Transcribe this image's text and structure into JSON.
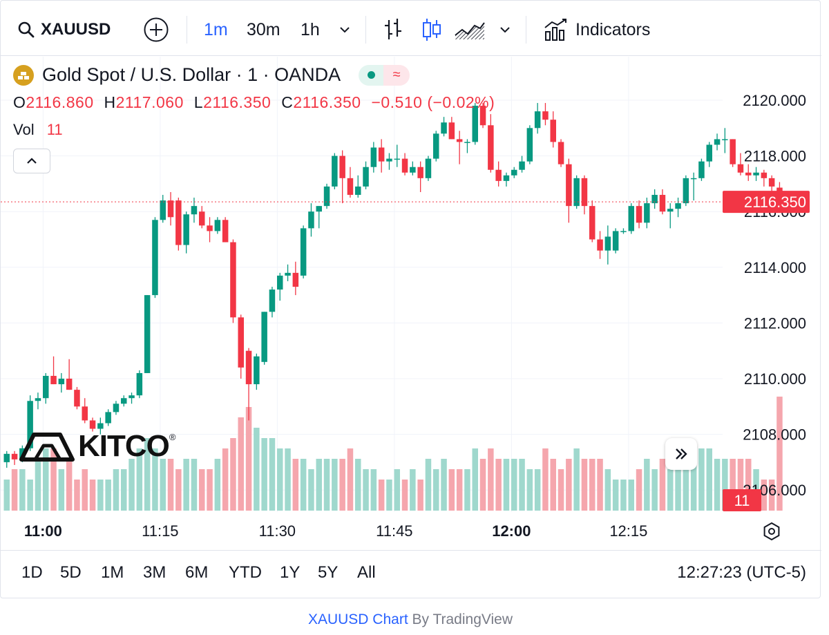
{
  "toolbar": {
    "symbol": "XAUUSD",
    "intervals": [
      "1m",
      "30m",
      "1h"
    ],
    "active_interval": "1m",
    "indicators_label": "Indicators"
  },
  "legend": {
    "title": "Gold Spot / U.S. Dollar · 1 · OANDA",
    "ohlc": {
      "o_label": "O",
      "o": "2116.860",
      "h_label": "H",
      "h": "2117.060",
      "l_label": "L",
      "l": "2116.350",
      "c_label": "C",
      "c": "2116.350",
      "change": "−0.510 (−0.02%)"
    },
    "vol_label": "Vol",
    "vol_value": "11"
  },
  "chart_data": {
    "type": "candlestick",
    "x_ticks": [
      {
        "label": "11:00",
        "index": 2,
        "bold": true
      },
      {
        "label": "11:15",
        "index": 17,
        "bold": false
      },
      {
        "label": "11:30",
        "index": 32,
        "bold": false
      },
      {
        "label": "11:45",
        "index": 47,
        "bold": false
      },
      {
        "label": "12:00",
        "index": 62,
        "bold": true
      },
      {
        "label": "12:15",
        "index": 77,
        "bold": false
      }
    ],
    "y_ticks": [
      "2120.000",
      "2118.000",
      "2116.000",
      "2114.000",
      "2112.000",
      "2110.000",
      "2108.000",
      "2106.000"
    ],
    "ylim": [
      2105.3,
      2120.9
    ],
    "last_price": "2116.350",
    "last_volume": "11",
    "up_color": "#089981",
    "down_color": "#f23645",
    "candles": [
      [
        2107.0,
        2107.4,
        2106.8,
        2107.3,
        3
      ],
      [
        2107.3,
        2107.4,
        2106.9,
        2107.1,
        4
      ],
      [
        2107.1,
        2107.6,
        2107.0,
        2107.5,
        4
      ],
      [
        2107.5,
        2109.4,
        2107.4,
        2109.2,
        3
      ],
      [
        2109.2,
        2109.5,
        2108.9,
        2109.3,
        5
      ],
      [
        2109.3,
        2110.2,
        2109.1,
        2110.1,
        6
      ],
      [
        2110.1,
        2110.8,
        2109.8,
        2109.8,
        6
      ],
      [
        2109.8,
        2110.2,
        2109.5,
        2110.0,
        4
      ],
      [
        2110.0,
        2110.7,
        2109.6,
        2109.6,
        5
      ],
      [
        2109.6,
        2109.7,
        2108.9,
        2109.0,
        3
      ],
      [
        2109.0,
        2109.3,
        2108.4,
        2108.5,
        4
      ],
      [
        2108.5,
        2108.6,
        2108.1,
        2108.2,
        3
      ],
      [
        2108.2,
        2108.6,
        2108.0,
        2108.4,
        3
      ],
      [
        2108.4,
        2108.9,
        2108.3,
        2108.8,
        3
      ],
      [
        2108.8,
        2109.2,
        2108.7,
        2109.1,
        4
      ],
      [
        2109.1,
        2109.4,
        2109.0,
        2109.3,
        4
      ],
      [
        2109.3,
        2109.5,
        2109.1,
        2109.4,
        5
      ],
      [
        2109.4,
        2110.3,
        2109.3,
        2110.2,
        6
      ],
      [
        2110.2,
        2113.0,
        2110.2,
        2113.0,
        7
      ],
      [
        2113.0,
        2115.8,
        2112.9,
        2115.7,
        6
      ],
      [
        2115.7,
        2116.6,
        2115.6,
        2116.4,
        5
      ],
      [
        2116.4,
        2116.7,
        2115.5,
        2115.8,
        5
      ],
      [
        2116.4,
        2116.5,
        2114.6,
        2114.8,
        4
      ],
      [
        2114.8,
        2116.0,
        2114.5,
        2115.9,
        5
      ],
      [
        2115.9,
        2116.5,
        2115.6,
        2116.2,
        5
      ],
      [
        2116.0,
        2116.2,
        2115.4,
        2115.5,
        4
      ],
      [
        2115.5,
        2115.8,
        2114.9,
        2115.3,
        4
      ],
      [
        2115.3,
        2115.8,
        2115.2,
        2115.7,
        5
      ],
      [
        2115.7,
        2115.8,
        2114.9,
        2114.9,
        6
      ],
      [
        2114.9,
        2115.0,
        2112.0,
        2112.2,
        7
      ],
      [
        2112.2,
        2112.3,
        2110.0,
        2110.4,
        9
      ],
      [
        2111.0,
        2111.1,
        2108.5,
        2109.8,
        10
      ],
      [
        2109.8,
        2110.9,
        2109.6,
        2110.8,
        8
      ],
      [
        2110.6,
        2112.4,
        2110.5,
        2112.4,
        7
      ],
      [
        2112.4,
        2113.3,
        2112.2,
        2113.2,
        7
      ],
      [
        2113.2,
        2113.8,
        2112.8,
        2113.7,
        6
      ],
      [
        2113.7,
        2114.1,
        2113.5,
        2113.8,
        6
      ],
      [
        2113.8,
        2114.2,
        2113.0,
        2113.3,
        5
      ],
      [
        2113.7,
        2115.5,
        2113.6,
        2115.4,
        5
      ],
      [
        2115.4,
        2116.3,
        2115.1,
        2116.0,
        4
      ],
      [
        2116.0,
        2116.2,
        2115.4,
        2116.2,
        5
      ],
      [
        2116.2,
        2117.0,
        2116.1,
        2116.9,
        5
      ],
      [
        2116.9,
        2118.1,
        2116.8,
        2118.0,
        5
      ],
      [
        2118.0,
        2118.2,
        2116.3,
        2117.2,
        5
      ],
      [
        2117.2,
        2117.6,
        2116.5,
        2116.6,
        6
      ],
      [
        2116.6,
        2117.3,
        2116.5,
        2116.9,
        5
      ],
      [
        2116.9,
        2117.8,
        2116.8,
        2117.6,
        4
      ],
      [
        2117.6,
        2118.5,
        2117.4,
        2118.3,
        4
      ],
      [
        2118.3,
        2118.6,
        2117.4,
        2117.8,
        3
      ],
      [
        2117.8,
        2118.1,
        2117.5,
        2117.9,
        3
      ],
      [
        2117.9,
        2118.4,
        2117.6,
        2117.9,
        4
      ],
      [
        2117.9,
        2118.1,
        2117.3,
        2117.4,
        3
      ],
      [
        2117.4,
        2117.8,
        2117.3,
        2117.6,
        4
      ],
      [
        2117.6,
        2117.8,
        2116.7,
        2117.2,
        3
      ],
      [
        2117.2,
        2118.0,
        2117.1,
        2117.9,
        5
      ],
      [
        2117.9,
        2118.9,
        2117.8,
        2118.8,
        4
      ],
      [
        2118.8,
        2119.4,
        2118.7,
        2119.2,
        5
      ],
      [
        2119.2,
        2119.4,
        2118.6,
        2118.6,
        4
      ],
      [
        2118.6,
        2118.9,
        2117.7,
        2118.5,
        4
      ],
      [
        2118.5,
        2118.6,
        2118.1,
        2118.5,
        4
      ],
      [
        2118.5,
        2119.9,
        2118.4,
        2119.8,
        6
      ],
      [
        2119.8,
        2119.9,
        2119.0,
        2119.1,
        5
      ],
      [
        2119.1,
        2119.5,
        2117.4,
        2117.5,
        6
      ],
      [
        2117.5,
        2117.8,
        2116.9,
        2117.1,
        5
      ],
      [
        2117.1,
        2117.4,
        2116.9,
        2117.3,
        5
      ],
      [
        2117.3,
        2117.6,
        2117.2,
        2117.5,
        5
      ],
      [
        2117.5,
        2118.0,
        2117.4,
        2117.8,
        5
      ],
      [
        2117.8,
        2119.1,
        2117.7,
        2119.0,
        4
      ],
      [
        2119.0,
        2119.9,
        2118.8,
        2119.6,
        4
      ],
      [
        2119.6,
        2119.9,
        2119.1,
        2119.3,
        6
      ],
      [
        2119.3,
        2119.6,
        2118.3,
        2118.5,
        5
      ],
      [
        2118.5,
        2118.6,
        2117.6,
        2117.7,
        4
      ],
      [
        2117.7,
        2117.9,
        2115.6,
        2116.2,
        5
      ],
      [
        2116.2,
        2117.3,
        2116.1,
        2117.2,
        6
      ],
      [
        2117.2,
        2117.3,
        2115.9,
        2116.2,
        5
      ],
      [
        2116.2,
        2116.4,
        2114.9,
        2115.0,
        5
      ],
      [
        2115.0,
        2115.3,
        2114.3,
        2114.6,
        5
      ],
      [
        2114.6,
        2115.5,
        2114.1,
        2115.1,
        4
      ],
      [
        2114.6,
        2115.4,
        2114.5,
        2115.3,
        3
      ],
      [
        2115.3,
        2115.4,
        2115.2,
        2115.3,
        3
      ],
      [
        2115.3,
        2116.3,
        2115.2,
        2116.2,
        3
      ],
      [
        2116.2,
        2116.4,
        2115.4,
        2115.6,
        4
      ],
      [
        2115.6,
        2116.5,
        2115.4,
        2116.3,
        5
      ],
      [
        2116.3,
        2116.8,
        2116.1,
        2116.6,
        4
      ],
      [
        2116.6,
        2116.8,
        2115.9,
        2116.0,
        5
      ],
      [
        2116.0,
        2116.3,
        2115.4,
        2116.1,
        4
      ],
      [
        2116.1,
        2116.5,
        2115.8,
        2116.3,
        5
      ],
      [
        2116.3,
        2117.3,
        2116.2,
        2117.2,
        6
      ],
      [
        2117.2,
        2117.4,
        2116.4,
        2117.2,
        6
      ],
      [
        2117.2,
        2117.9,
        2117.1,
        2117.8,
        6
      ],
      [
        2117.8,
        2118.5,
        2117.6,
        2118.4,
        6
      ],
      [
        2118.4,
        2118.8,
        2118.2,
        2118.6,
        5
      ],
      [
        2118.6,
        2119.0,
        2118.1,
        2118.6,
        5
      ],
      [
        2118.6,
        2118.6,
        2117.6,
        2117.7,
        5
      ],
      [
        2117.7,
        2118.1,
        2117.3,
        2117.4,
        5
      ],
      [
        2117.4,
        2117.7,
        2117.1,
        2117.3,
        5
      ],
      [
        2117.3,
        2117.6,
        2117.1,
        2117.4,
        4
      ],
      [
        2117.4,
        2117.5,
        2116.9,
        2117.2,
        3
      ],
      [
        2117.2,
        2117.3,
        2116.6,
        2116.9,
        3
      ],
      [
        2116.86,
        2117.06,
        2116.35,
        2116.35,
        11
      ]
    ]
  },
  "kitco": {
    "text": "KITCO",
    "registered": "®"
  },
  "ranges": [
    "1D",
    "5D",
    "1M",
    "3M",
    "6M",
    "YTD",
    "1Y",
    "5Y",
    "All"
  ],
  "clock": "12:27:23 (UTC-5)",
  "credit": {
    "link": "XAUUSD Chart",
    "by": "By TradingView"
  },
  "icons": [
    "search-icon",
    "add-symbol-icon",
    "chevron-down-icon",
    "bar-chart-type-icon",
    "candles-chart-type-icon",
    "area-chart-type-icon",
    "indicators-icon",
    "collapse-icon",
    "settings-icon",
    "scroll-right-icon",
    "gold-symbol-icon"
  ]
}
